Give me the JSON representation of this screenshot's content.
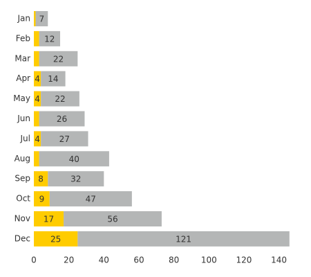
{
  "chart_data": {
    "type": "stacked-bar-horizontal",
    "categories": [
      "Jan",
      "Feb",
      "Mar",
      "Apr",
      "May",
      "Jun",
      "Jul",
      "Aug",
      "Sep",
      "Oct",
      "Nov",
      "Dec"
    ],
    "series": [
      {
        "color": "#ffcc00",
        "values": [
          1,
          3,
          3,
          4,
          4,
          3,
          4,
          3,
          8,
          9,
          17,
          25
        ]
      },
      {
        "color": "#b4b6b6",
        "values": [
          7,
          12,
          22,
          14,
          22,
          26,
          27,
          40,
          32,
          47,
          56,
          121
        ]
      }
    ],
    "xlim": [
      0,
      150
    ],
    "xticks": [
      0,
      20,
      40,
      60,
      80,
      100,
      120,
      140
    ],
    "grid": false
  }
}
